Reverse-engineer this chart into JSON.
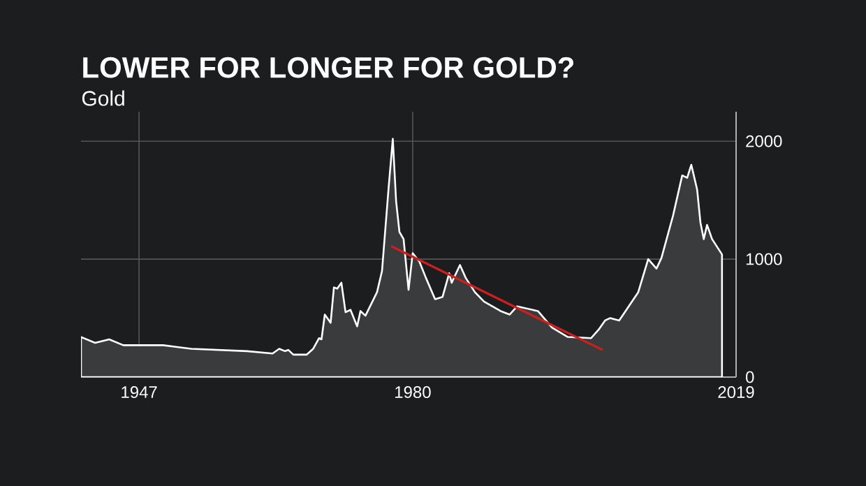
{
  "chart_data": {
    "type": "area",
    "title": "LOWER FOR LONGER FOR GOLD?",
    "subtitle": "Gold",
    "xlim": [
      1940,
      2019
    ],
    "xticks": [
      1947,
      1980,
      2019
    ],
    "ylim": [
      0,
      2250
    ],
    "yticks": [
      0,
      1000,
      2000
    ],
    "grid": true,
    "series": [
      {
        "color": "#3a3b3d",
        "x": [
          1940,
          1941.7,
          1943.4,
          1945.1,
          1949.9,
          1953.3,
          1960.0,
          1963.1,
          1963.9,
          1964.6,
          1965.0,
          1965.6,
          1967.2,
          1968.0,
          1968.7,
          1969.0,
          1969.4,
          1970.1,
          1970.5,
          1970.9,
          1971.4,
          1971.9,
          1972.5,
          1973.3,
          1973.7,
          1974.3,
          1975.7,
          1976.3,
          1977.1,
          1977.6,
          1978.0,
          1978.4,
          1978.9,
          1979.5,
          1980.0,
          1980.8,
          1981.6,
          1982.7,
          1983.6,
          1984.4,
          1984.7,
          1985.7,
          1986.4,
          1987.5,
          1988.6,
          1990.6,
          1991.7,
          1992.6,
          1995.1,
          1996.8,
          1998.7,
          2001.5,
          2002.4,
          2003.2,
          2003.8,
          2004.9,
          2007.2,
          2008.4,
          2009.4,
          2010.0,
          2011.4,
          2012.5,
          2013.1,
          2013.6,
          2014.3,
          2014.7,
          2015.1,
          2015.5,
          2016.1,
          2017.3
        ],
        "values": [
          340,
          290,
          320,
          270,
          270,
          240,
          220,
          200,
          240,
          220,
          230,
          190,
          190,
          240,
          330,
          320,
          530,
          460,
          760,
          750,
          800,
          550,
          570,
          430,
          560,
          520,
          720,
          900,
          1610,
          2020,
          1490,
          1230,
          1170,
          740,
          1050,
          980,
          840,
          660,
          680,
          880,
          800,
          950,
          840,
          720,
          640,
          560,
          530,
          600,
          560,
          420,
          340,
          330,
          400,
          480,
          500,
          480,
          720,
          1000,
          920,
          1010,
          1370,
          1710,
          1690,
          1800,
          1590,
          1310,
          1170,
          1290,
          1170,
          1040
        ]
      },
      {
        "type": "line",
        "color": "#cc1f1f",
        "x": [
          1977.4,
          2002.9
        ],
        "values": [
          1110,
          230
        ]
      }
    ]
  }
}
